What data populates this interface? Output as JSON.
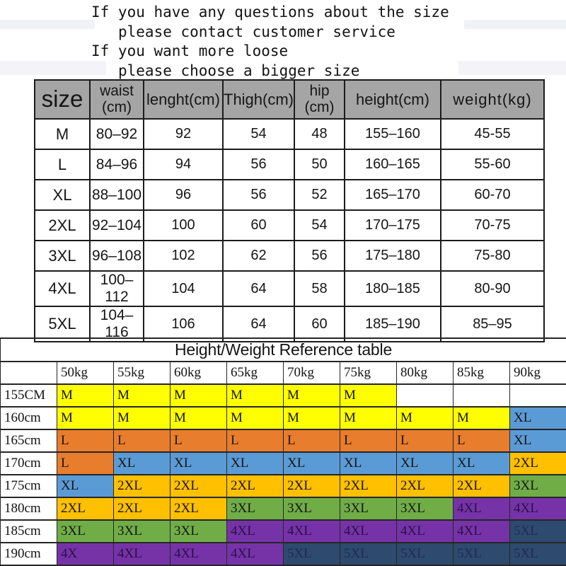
{
  "notice": {
    "lines": [
      {
        "text": "If you have any questions about the size",
        "indent": false
      },
      {
        "text": "please contact customer service",
        "indent": true
      },
      {
        "text": "If you want more loose",
        "indent": false
      },
      {
        "text": "please choose a bigger size",
        "indent": true
      }
    ]
  },
  "size_table": {
    "headers": [
      "size",
      "waist\n(cm)",
      "lenght(cm)",
      "Thigh(cm)",
      "hip\n(cm)",
      "height(cm)",
      "weight(kg)"
    ],
    "rows": [
      [
        "M",
        "80–92",
        "92",
        "54",
        "48",
        "155–160",
        "45-55"
      ],
      [
        "L",
        "84–96",
        "94",
        "56",
        "50",
        "160–165",
        "55-60"
      ],
      [
        "XL",
        "88–100",
        "96",
        "56",
        "52",
        "165–170",
        "60-70"
      ],
      [
        "2XL",
        "92–104",
        "100",
        "60",
        "54",
        "170–175",
        "70-75"
      ],
      [
        "3XL",
        "96–108",
        "102",
        "62",
        "56",
        "175–180",
        "75-80"
      ],
      [
        "4XL",
        "100–112",
        "104",
        "64",
        "58",
        "180–185",
        "80-90"
      ],
      [
        "5XL",
        "104–116",
        "106",
        "64",
        "60",
        "185–190",
        "85–95"
      ]
    ],
    "header_bg": "#a5a5a5"
  },
  "reference_table": {
    "title": "Height/Weight Reference table",
    "weight_headers": [
      "50kg",
      "55kg",
      "60kg",
      "65kg",
      "70kg",
      "75kg",
      "80kg",
      "85kg",
      "90kg"
    ],
    "rows": [
      {
        "height": "155CM",
        "cells": [
          "M",
          "M",
          "M",
          "M",
          "M",
          "M",
          "",
          "",
          ""
        ]
      },
      {
        "height": "160cm",
        "cells": [
          "M",
          "M",
          "M",
          "M",
          "M",
          "M",
          "M",
          "M",
          "XL"
        ]
      },
      {
        "height": "165cm",
        "cells": [
          "L",
          "L",
          "L",
          "L",
          "L",
          "L",
          "L",
          "L",
          "XL"
        ]
      },
      {
        "height": "170cm",
        "cells": [
          "L",
          "XL",
          "XL",
          "XL",
          "XL",
          "XL",
          "XL",
          "XL",
          "2XL"
        ]
      },
      {
        "height": "175cm",
        "cells": [
          "XL",
          "2XL",
          "2XL",
          "2XL",
          "2XL",
          "2XL",
          "2XL",
          "2XL",
          "3XL"
        ]
      },
      {
        "height": "180cm",
        "cells": [
          "2XL",
          "2XL",
          "2XL",
          "3XL",
          "3XL",
          "3XL",
          "3XL",
          "4XL",
          "4XL"
        ]
      },
      {
        "height": "185cm",
        "cells": [
          "3XL",
          "3XL",
          "3XL",
          "4XL",
          "4XL",
          "4XL",
          "4XL",
          "4XL",
          "5XL"
        ]
      },
      {
        "height": "190cm",
        "cells": [
          "4X",
          "4XL",
          "4XL",
          "4XL",
          "5XL",
          "5XL",
          "5XL",
          "5XL",
          "5XL"
        ]
      }
    ],
    "size_colors": {
      "M": "#ffff00",
      "L": "#e87d2e",
      "XL": "#5b9bd5",
      "2XL": "#ffc000",
      "3XL": "#70ad47",
      "4XL": "#7633a8",
      "4X": "#7633a8",
      "5XL": "#2e4a6e"
    },
    "size_text_colors": {
      "4XL": "#2a1045",
      "4X": "#2a1045",
      "5XL": "#1e2c55"
    },
    "default_cell_text_color": "#151515"
  }
}
